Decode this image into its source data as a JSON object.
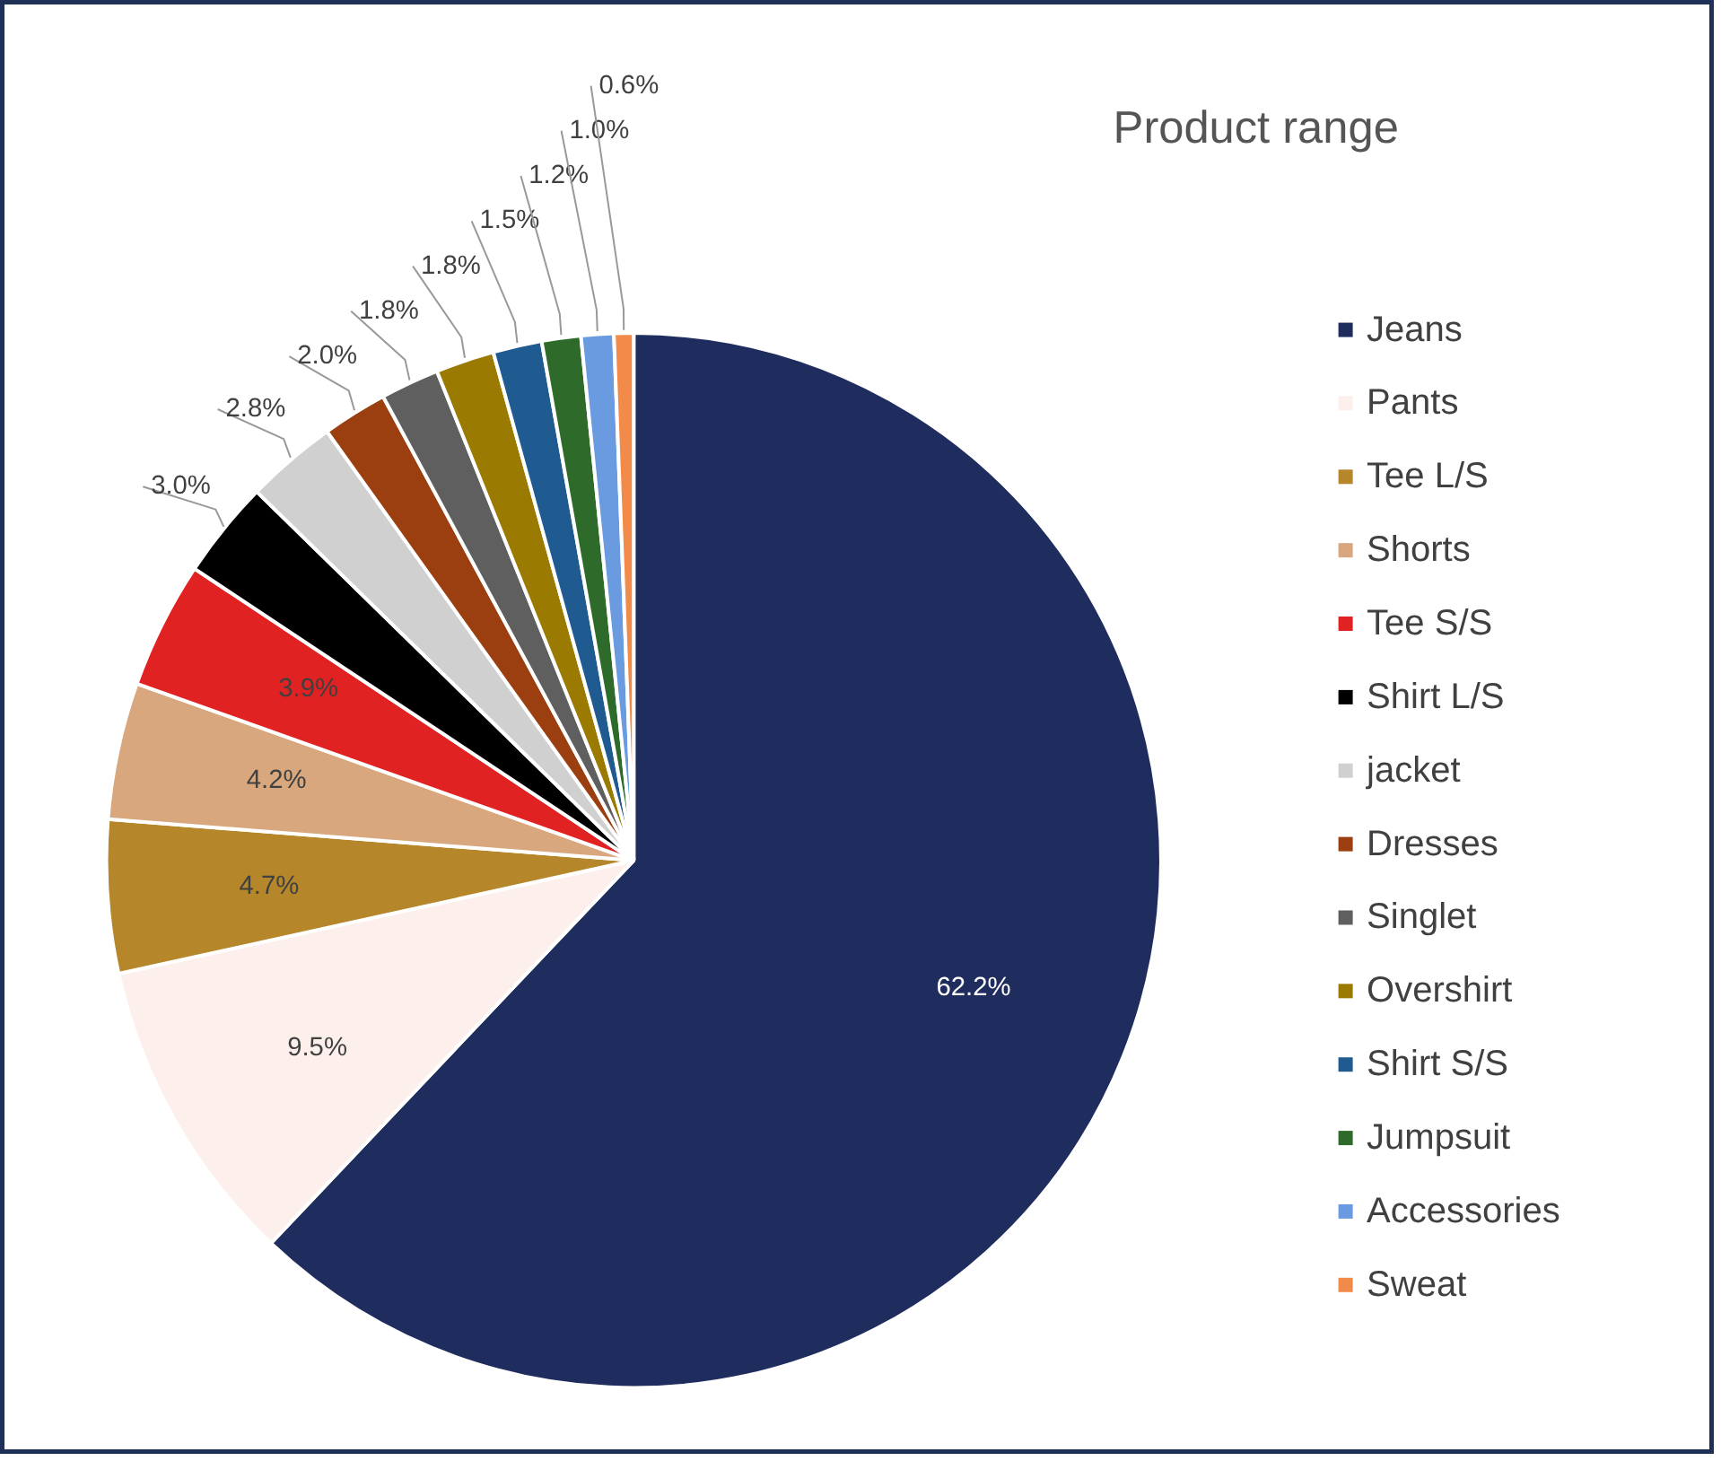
{
  "chart_data": {
    "type": "pie",
    "title": "Product range",
    "categories": [
      "Jeans",
      "Pants",
      "Tee L/S",
      "Shorts",
      "Tee S/S",
      "Shirt L/S",
      "jacket",
      "Dresses",
      "Singlet",
      "Overshirt",
      "Shirt S/S",
      "Jumpsuit",
      "Accessories",
      "Sweat"
    ],
    "values": [
      62.2,
      9.5,
      4.7,
      4.2,
      3.9,
      3.0,
      2.8,
      2.0,
      1.8,
      1.8,
      1.5,
      1.2,
      1.0,
      0.6
    ],
    "colors": [
      "#1f2d5e",
      "#fdf0ec",
      "#b5862a",
      "#d8a77e",
      "#e02222",
      "#000000",
      "#d0d0d0",
      "#9c3f10",
      "#5f5f5f",
      "#9a7a00",
      "#1f5a91",
      "#2e6b2a",
      "#6a9be0",
      "#f28b4a"
    ],
    "value_labels": [
      "62.2%",
      "9.5%",
      "4.7%",
      "4.2%",
      "3.9%",
      "3.0%",
      "2.8%",
      "2.0%",
      "1.8%",
      "1.8%",
      "1.5%",
      "1.2%",
      "1.0%",
      "0.6%"
    ],
    "legend": "right"
  }
}
